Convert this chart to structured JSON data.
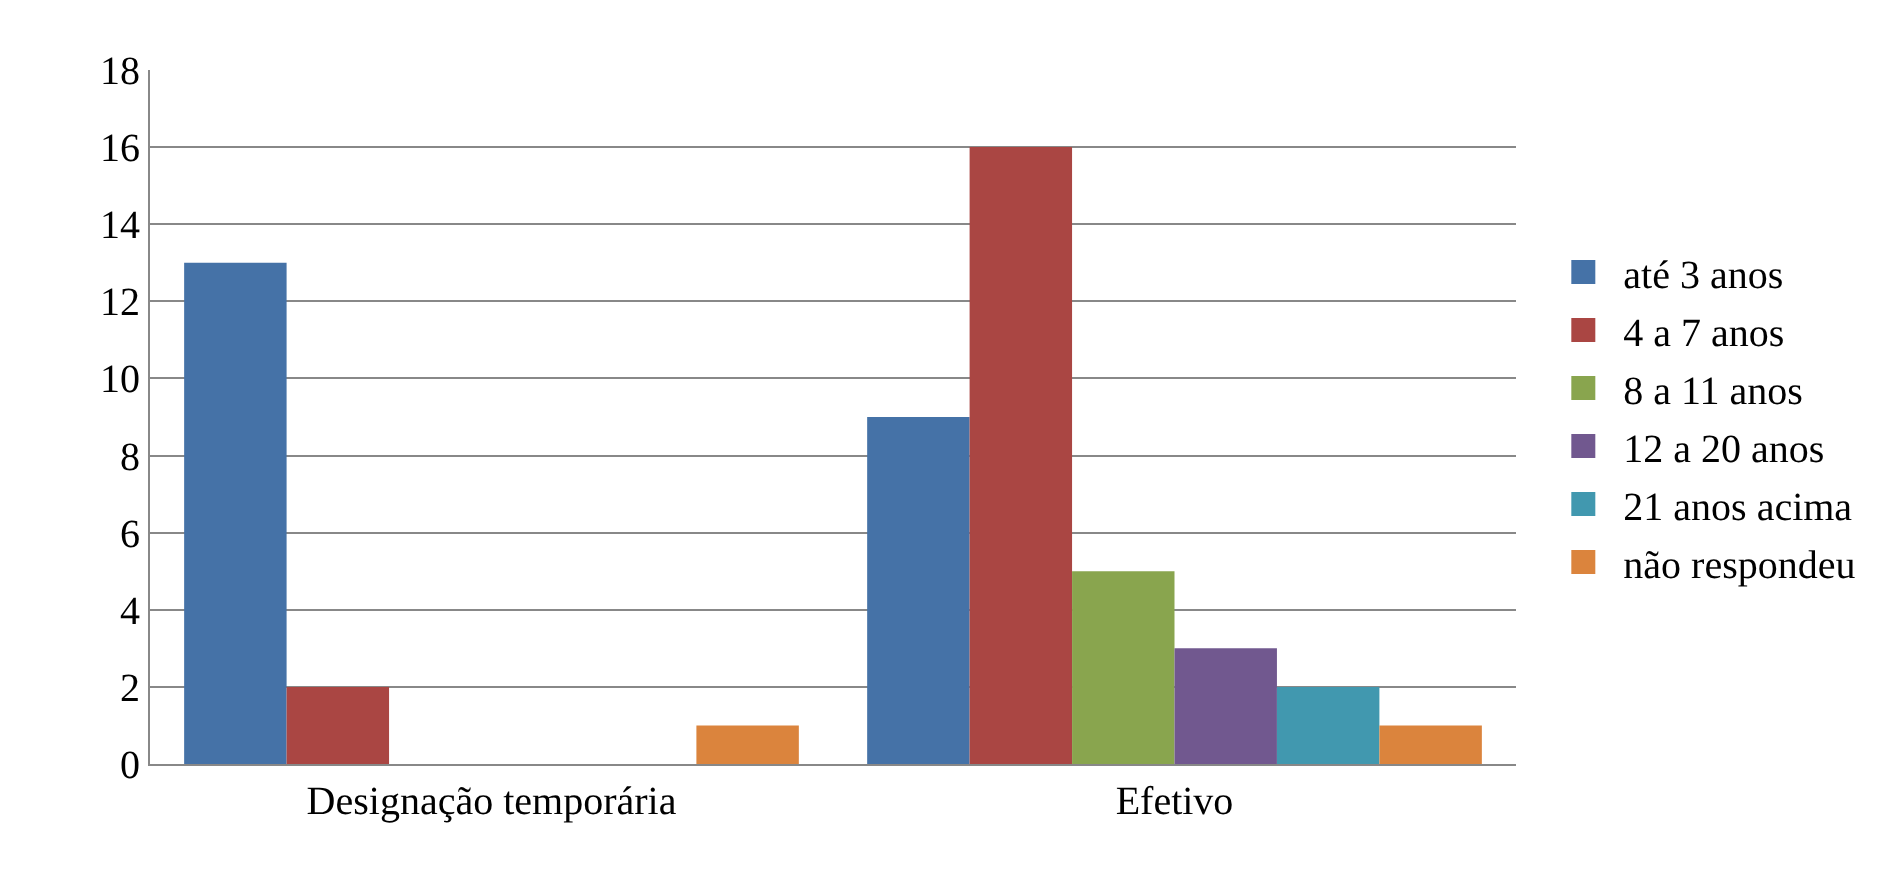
{
  "chart_data": {
    "type": "bar",
    "categories": [
      "Designação temporária",
      "Efetivo"
    ],
    "series": [
      {
        "name": "até 3 anos",
        "color": "#4572a7",
        "values": [
          13,
          9
        ]
      },
      {
        "name": "4 a 7 anos",
        "color": "#aa4643",
        "values": [
          2,
          16
        ]
      },
      {
        "name": "8 a 11 anos",
        "color": "#89a54e",
        "values": [
          0,
          5
        ]
      },
      {
        "name": "12 a 20 anos",
        "color": "#71588f",
        "values": [
          0,
          3
        ]
      },
      {
        "name": "21 anos acima",
        "color": "#4198af",
        "values": [
          0,
          2
        ]
      },
      {
        "name": "não respondeu",
        "color": "#db843d",
        "values": [
          1,
          1
        ]
      }
    ],
    "ylim": [
      0,
      18
    ],
    "yticks": [
      0,
      2,
      4,
      6,
      8,
      10,
      12,
      14,
      16,
      18
    ],
    "grid": "y",
    "legend": "right"
  }
}
